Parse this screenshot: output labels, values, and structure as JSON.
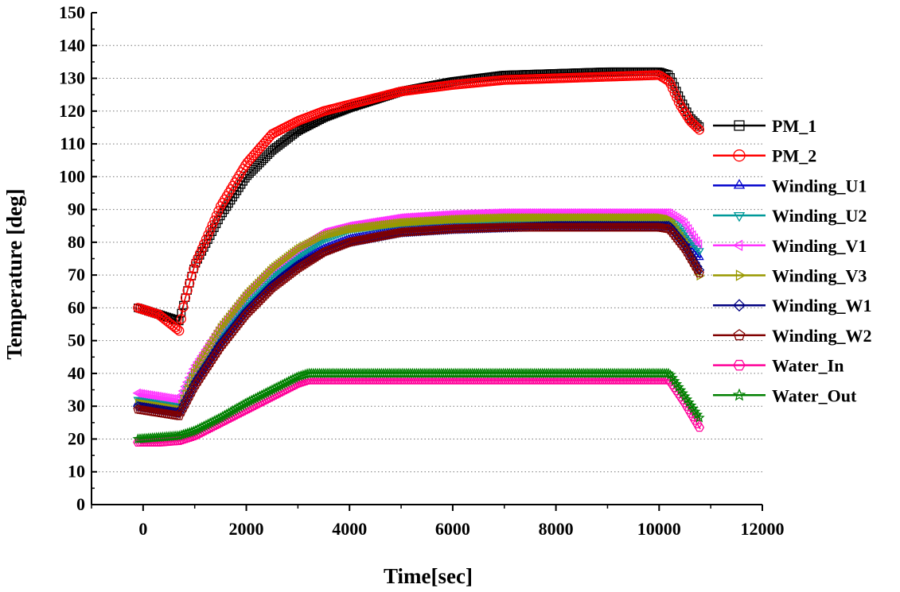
{
  "chart_data": {
    "type": "line",
    "title": "",
    "xlabel": "Time[sec]",
    "ylabel": "Temperature [deg]",
    "xlim": [
      -1000,
      12000
    ],
    "ylim": [
      0,
      150
    ],
    "xticks": [
      0,
      2000,
      4000,
      6000,
      8000,
      10000,
      12000
    ],
    "yticks": [
      0,
      10,
      20,
      30,
      40,
      50,
      60,
      70,
      80,
      90,
      100,
      110,
      120,
      130,
      140,
      150
    ],
    "grid": "horizontal-dotted",
    "legend_position": "right",
    "series": [
      {
        "name": "PM_1",
        "color": "#000000",
        "marker": "square",
        "x": [
          -100,
          300,
          700,
          800,
          1000,
          1500,
          2000,
          2500,
          3000,
          3500,
          4000,
          5000,
          6000,
          7000,
          8000,
          9000,
          10000,
          10200,
          10400,
          10600,
          10800
        ],
        "y": [
          60,
          58,
          56,
          62,
          73,
          88,
          100,
          108,
          114,
          118,
          121,
          126,
          129,
          131,
          131.5,
          132,
          132,
          131,
          124,
          118,
          115
        ]
      },
      {
        "name": "PM_2",
        "color": "#ff0000",
        "marker": "circle",
        "x": [
          -100,
          300,
          700,
          800,
          1000,
          1500,
          2000,
          2500,
          3000,
          3500,
          4000,
          5000,
          6000,
          7000,
          8000,
          9000,
          10000,
          10200,
          10400,
          10600,
          10800
        ],
        "y": [
          60,
          58,
          53,
          62,
          73,
          91,
          104,
          113,
          117,
          120,
          122,
          126,
          128,
          129.5,
          130,
          130.5,
          131,
          129,
          122,
          117,
          114
        ]
      },
      {
        "name": "Winding_U1",
        "color": "#0000cc",
        "marker": "triangle-up",
        "x": [
          -100,
          300,
          700,
          1000,
          1500,
          2000,
          2500,
          3000,
          3500,
          4000,
          5000,
          6000,
          7000,
          8000,
          9000,
          10000,
          10200,
          10500,
          10800
        ],
        "y": [
          31,
          30,
          29,
          38,
          50,
          60,
          67,
          74,
          78,
          81,
          84,
          85,
          85,
          85,
          85,
          85,
          85,
          81,
          75
        ]
      },
      {
        "name": "Winding_U2",
        "color": "#009999",
        "marker": "triangle-down",
        "x": [
          -100,
          300,
          700,
          1000,
          1500,
          2000,
          2500,
          3000,
          3500,
          4000,
          5000,
          6000,
          7000,
          8000,
          9000,
          10000,
          10200,
          10500,
          10800
        ],
        "y": [
          32,
          31,
          30,
          40,
          52,
          62,
          70,
          76,
          81,
          84,
          86,
          87,
          87,
          87,
          87,
          87,
          87,
          83,
          77
        ]
      },
      {
        "name": "Winding_V1",
        "color": "#ff33ff",
        "marker": "triangle-left",
        "x": [
          -100,
          300,
          700,
          1000,
          1500,
          2000,
          2500,
          3000,
          3500,
          4000,
          5000,
          6000,
          7000,
          8000,
          9000,
          10000,
          10200,
          10500,
          10800
        ],
        "y": [
          34,
          33,
          32,
          42,
          54,
          64,
          72,
          78,
          83,
          85,
          87.5,
          88.5,
          89,
          89,
          89,
          89,
          89,
          86,
          79
        ]
      },
      {
        "name": "Winding_V3",
        "color": "#999900",
        "marker": "triangle-right",
        "x": [
          -100,
          300,
          700,
          1000,
          1500,
          2000,
          2500,
          3000,
          3500,
          4000,
          5000,
          6000,
          7000,
          8000,
          9000,
          10000,
          10200,
          10500,
          10800
        ],
        "y": [
          31,
          30,
          29,
          41,
          54,
          64,
          72,
          78,
          82,
          84,
          86,
          87,
          87.5,
          87.5,
          87.5,
          87.5,
          87,
          80,
          69
        ]
      },
      {
        "name": "Winding_W1",
        "color": "#000080",
        "marker": "diamond",
        "x": [
          -100,
          300,
          700,
          1000,
          1500,
          2000,
          2500,
          3000,
          3500,
          4000,
          5000,
          6000,
          7000,
          8000,
          9000,
          10000,
          10200,
          10500,
          10800
        ],
        "y": [
          30,
          29,
          28,
          37,
          49,
          59,
          67,
          73,
          77,
          80,
          83,
          84,
          84.5,
          85,
          85,
          85,
          85,
          79,
          71
        ]
      },
      {
        "name": "Winding_W2",
        "color": "#800000",
        "marker": "pentagon",
        "x": [
          -100,
          300,
          700,
          1000,
          1500,
          2000,
          2500,
          3000,
          3500,
          4000,
          5000,
          6000,
          7000,
          8000,
          9000,
          10000,
          10200,
          10500,
          10800
        ],
        "y": [
          29,
          28,
          27,
          36,
          48,
          58,
          66,
          72,
          77,
          80,
          83,
          84,
          84.5,
          84.5,
          84.5,
          84.5,
          84,
          78,
          70
        ]
      },
      {
        "name": "Water_In",
        "color": "#ff0099",
        "marker": "hexagon",
        "x": [
          -100,
          300,
          700,
          1000,
          1500,
          2000,
          2500,
          3000,
          3200,
          4000,
          5000,
          6000,
          7000,
          8000,
          9000,
          10000,
          10200,
          10500,
          10800
        ],
        "y": [
          19,
          19,
          19.5,
          21,
          25,
          29,
          33,
          37,
          38,
          38,
          38,
          38,
          38,
          38,
          38,
          38,
          38,
          31,
          23
        ]
      },
      {
        "name": "Water_Out",
        "color": "#008000",
        "marker": "star",
        "x": [
          -100,
          300,
          700,
          1000,
          1500,
          2000,
          2500,
          3000,
          3200,
          4000,
          5000,
          6000,
          7000,
          8000,
          9000,
          10000,
          10200,
          10500,
          10800
        ],
        "y": [
          20,
          20.5,
          21,
          22.5,
          26.5,
          31,
          35,
          39,
          40,
          40,
          40,
          40,
          40,
          40,
          40,
          40,
          40,
          33,
          26
        ]
      }
    ]
  }
}
